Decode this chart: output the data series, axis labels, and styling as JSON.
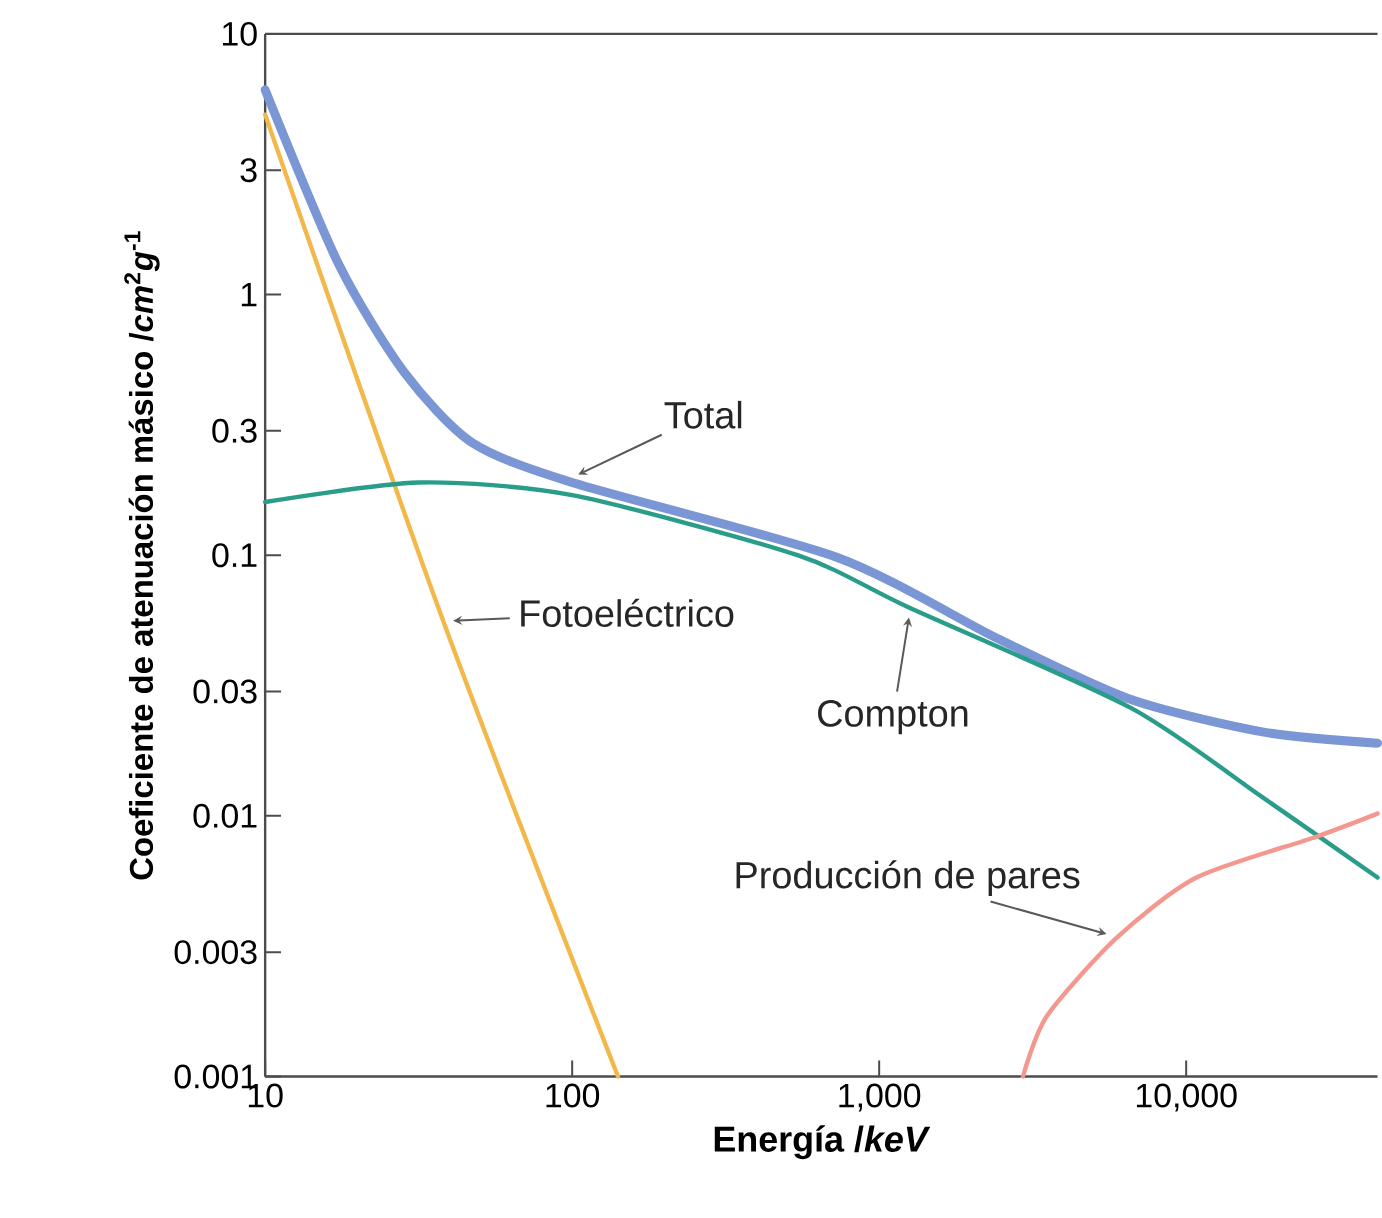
{
  "chart_data": {
    "type": "line",
    "log": "xy",
    "xlabel": "Energía /*keV*",
    "ylabel": "Coeficiente de atenuación másico /*cm*$^{2}$*g*$^{-1}$",
    "xlim": [
      10,
      42000
    ],
    "ylim": [
      0.001,
      10
    ],
    "xticks": [
      10,
      100,
      {
        "value": 1000,
        "label": "1,000"
      },
      {
        "value": 10000,
        "label": "10,000"
      }
    ],
    "yticks": [
      0.001,
      0.003,
      0.01,
      0.03,
      0.1,
      0.3,
      1,
      3,
      10
    ],
    "series": [
      {
        "name": "Total",
        "color": "#7b96d4",
        "x": [
          10,
          17.4,
          28.5,
          47.3,
          100,
          731,
          2420,
          6580,
          17700,
          42000
        ],
        "values": [
          6.1,
          1.3,
          0.5,
          0.27,
          0.19,
          0.098,
          0.048,
          0.028,
          0.021,
          0.019
        ]
      },
      {
        "name": "Fotoeléctrico",
        "color": "#f2b84b",
        "x": [
          10,
          38,
          141
        ],
        "values": [
          4.9,
          0.056,
          0.001
        ]
      },
      {
        "name": "Compton",
        "color": "#2a9d8a",
        "x": [
          10,
          31.6,
          100,
          542,
          1250,
          6580,
          17700,
          42000
        ],
        "values": [
          0.16,
          0.19,
          0.17,
          0.1,
          0.063,
          0.026,
          0.0118,
          0.0058
        ]
      },
      {
        "name": "Producción de pares",
        "color": "#f4978e",
        "x": [
          2940,
          3510,
          5930,
          10800,
          26400,
          42000
        ],
        "values": [
          0.001,
          0.0017,
          0.0034,
          0.0058,
          0.0083,
          0.0102
        ]
      }
    ]
  }
}
